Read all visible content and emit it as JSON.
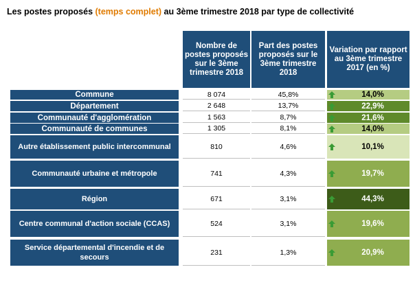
{
  "title": {
    "part1": "Les postes proposés ",
    "highlight": "(temps complet)",
    "part2": " au 3ème trimestre 2018 par type de collectivité"
  },
  "headers": {
    "col1": "Nombre de postes proposés sur le 3ème trimestre 2018",
    "col2": "Part des postes proposés sur le 3ème trimestre 2018",
    "col3": "Variation par rapport au 3ème trimestre 2017 (en %)"
  },
  "rows": [
    {
      "label": "Commune",
      "count": "8 074",
      "share": "45,8%",
      "variation": "14,0%"
    },
    {
      "label": "Département",
      "count": "2 648",
      "share": "13,7%",
      "variation": "22,9%"
    },
    {
      "label": "Communauté d'agglomération",
      "count": "1 563",
      "share": "8,7%",
      "variation": "21,6%"
    },
    {
      "label": "Communauté de communes",
      "count": "1 305",
      "share": "8,1%",
      "variation": "14,0%"
    },
    {
      "label": "Autre établissement public intercommunal",
      "count": "810",
      "share": "4,6%",
      "variation": "10,1%"
    },
    {
      "label": "Communauté urbaine et métropole",
      "count": "741",
      "share": "4,3%",
      "variation": "19,7%"
    },
    {
      "label": "Région",
      "count": "671",
      "share": "3,1%",
      "variation": "44,3%"
    },
    {
      "label": "Centre communal d'action sociale (CCAS)",
      "count": "524",
      "share": "3,1%",
      "variation": "19,6%"
    },
    {
      "label": "Service départemental d'incendie et de secours",
      "count": "231",
      "share": "1,3%",
      "variation": "20,9%"
    }
  ],
  "colors": {
    "header_bg": "#1f4e79",
    "variation_scale": [
      "#d9e5b8",
      "#b5cc82",
      "#8fad4f",
      "#5f8a2b",
      "#3d5c19"
    ],
    "arrow": "#3a9b35",
    "accent": "#e07b00"
  },
  "icons": {
    "trend": "arrow-up-icon"
  }
}
